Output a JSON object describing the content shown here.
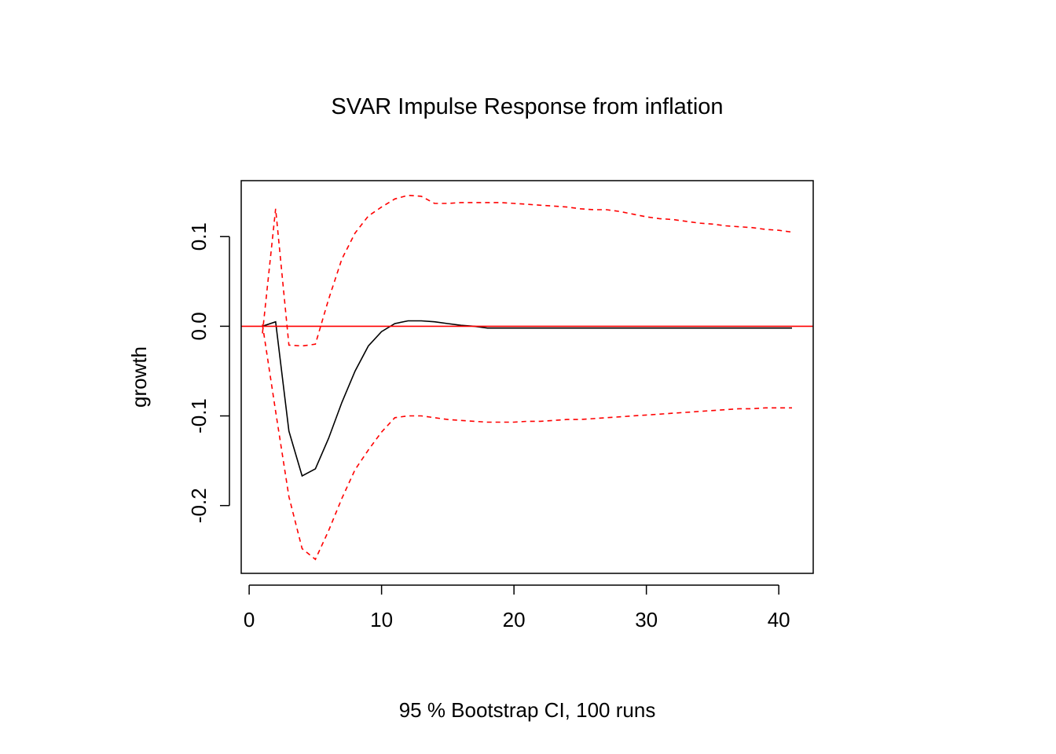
{
  "chart_data": {
    "type": "line",
    "title": "SVAR Impulse Response from inflation",
    "xlabel": "95 % Bootstrap CI,  100 runs",
    "ylabel": "growth",
    "xlim": [
      -0.6,
      42.6
    ],
    "ylim": [
      -0.2756,
      0.1624
    ],
    "x_ticks": [
      0,
      10,
      20,
      30,
      40
    ],
    "y_ticks": [
      -0.2,
      -0.1,
      0.0,
      0.1
    ],
    "x_tick_labels": [
      "0",
      "10",
      "20",
      "30",
      "40"
    ],
    "y_tick_labels": [
      "-0.2",
      "-0.1",
      "0.0",
      "0.1"
    ],
    "grid": false,
    "reference_line": {
      "y": 0,
      "color": "#ff0000"
    },
    "x": [
      1,
      2,
      3,
      4,
      5,
      6,
      7,
      8,
      9,
      10,
      11,
      12,
      13,
      14,
      15,
      16,
      17,
      18,
      19,
      20,
      21,
      22,
      23,
      24,
      25,
      26,
      27,
      28,
      29,
      30,
      31,
      32,
      33,
      34,
      35,
      36,
      37,
      38,
      39,
      40,
      41
    ],
    "series": [
      {
        "name": "",
        "role": "response",
        "color": "#000000",
        "dash": "solid",
        "values": [
          0.0,
          0.005,
          -0.117,
          -0.167,
          -0.159,
          -0.125,
          -0.085,
          -0.05,
          -0.022,
          -0.006,
          0.003,
          0.006,
          0.006,
          0.005,
          0.003,
          0.001,
          0.0,
          -0.002,
          -0.002,
          -0.002,
          -0.002,
          -0.002,
          -0.002,
          -0.002,
          -0.002,
          -0.002,
          -0.002,
          -0.002,
          -0.002,
          -0.002,
          -0.002,
          -0.002,
          -0.002,
          -0.002,
          -0.002,
          -0.002,
          -0.002,
          -0.002,
          -0.002,
          -0.002,
          -0.002
        ]
      },
      {
        "name": "",
        "role": "upper",
        "color": "#ff0000",
        "dash": "dashed",
        "values": [
          -0.008,
          0.131,
          -0.021,
          -0.022,
          -0.02,
          0.03,
          0.075,
          0.104,
          0.123,
          0.133,
          0.142,
          0.146,
          0.145,
          0.137,
          0.137,
          0.138,
          0.138,
          0.138,
          0.138,
          0.137,
          0.136,
          0.135,
          0.134,
          0.133,
          0.131,
          0.13,
          0.13,
          0.128,
          0.125,
          0.122,
          0.12,
          0.119,
          0.117,
          0.115,
          0.114,
          0.112,
          0.111,
          0.11,
          0.108,
          0.107,
          0.105
        ]
      },
      {
        "name": "",
        "role": "lower",
        "color": "#ff0000",
        "dash": "dashed",
        "values": [
          0.002,
          -0.095,
          -0.19,
          -0.248,
          -0.26,
          -0.228,
          -0.192,
          -0.16,
          -0.138,
          -0.118,
          -0.102,
          -0.1,
          -0.1,
          -0.102,
          -0.104,
          -0.105,
          -0.106,
          -0.107,
          -0.107,
          -0.107,
          -0.106,
          -0.106,
          -0.105,
          -0.104,
          -0.104,
          -0.103,
          -0.102,
          -0.101,
          -0.1,
          -0.099,
          -0.098,
          -0.097,
          -0.096,
          -0.095,
          -0.094,
          -0.093,
          -0.092,
          -0.092,
          -0.091,
          -0.091,
          -0.091
        ]
      }
    ]
  }
}
